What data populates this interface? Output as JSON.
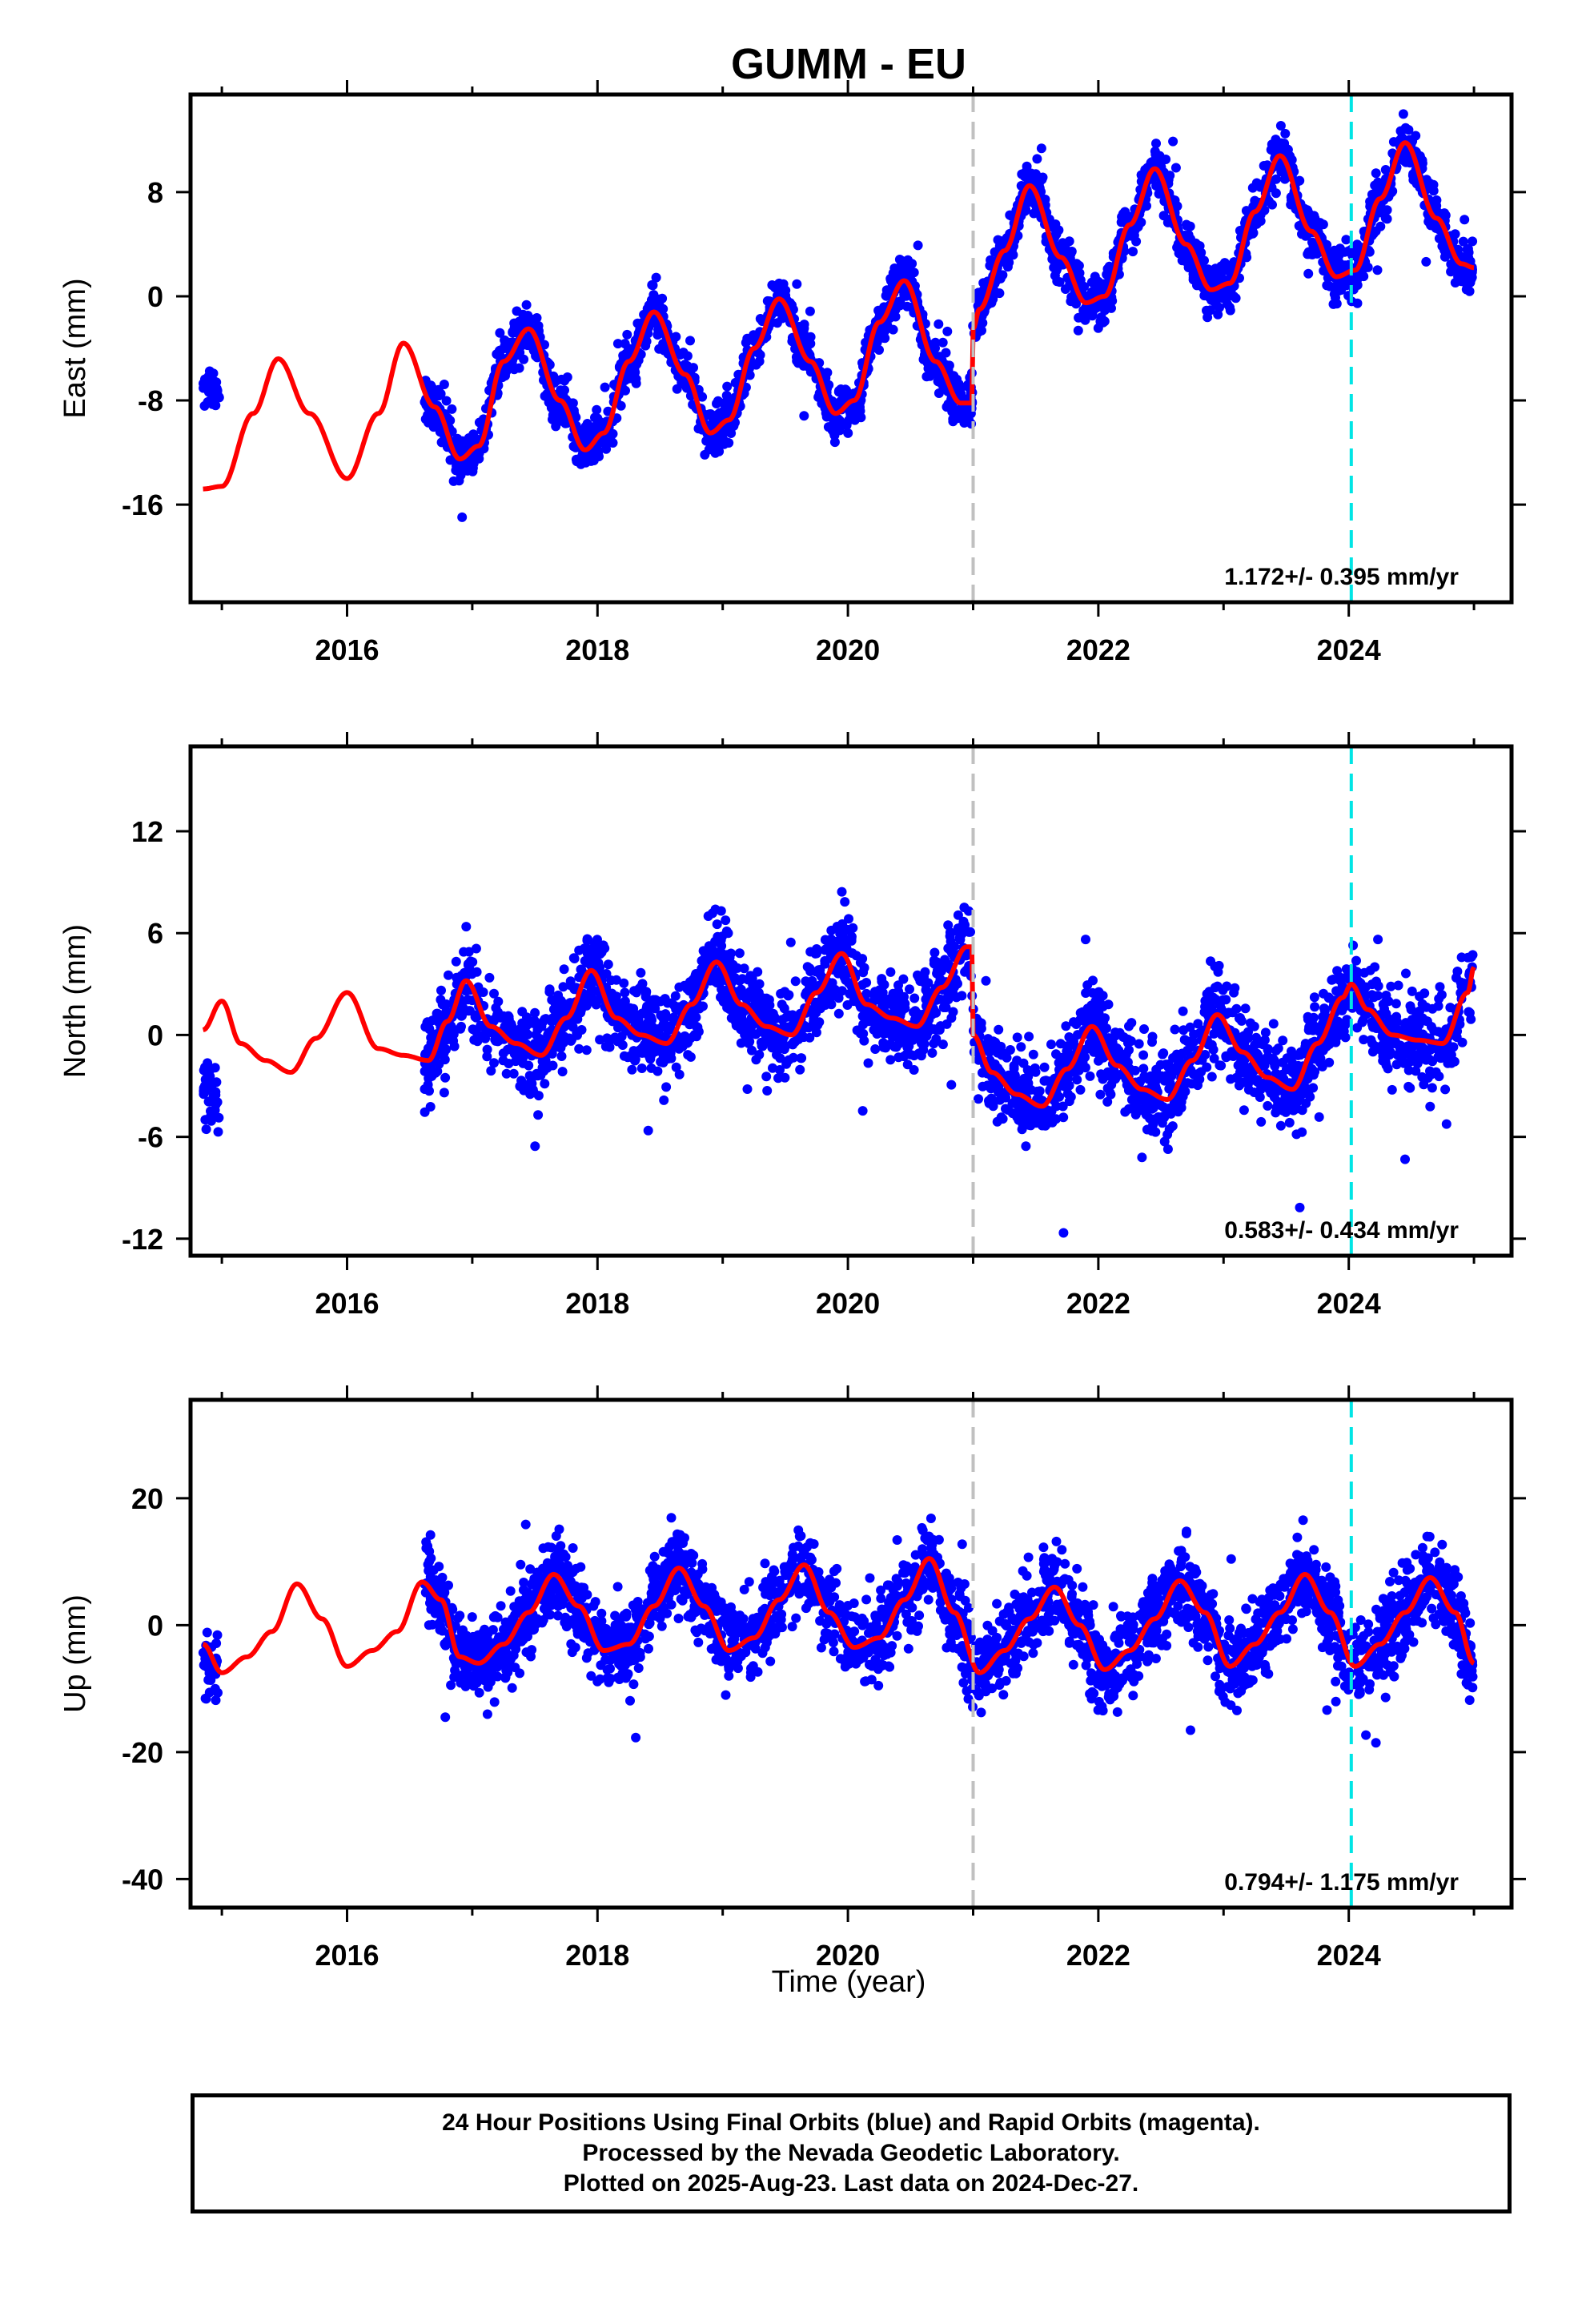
{
  "chart_data": {
    "title": "GUMM - EU",
    "type": "scatter",
    "xlabel": "Time (year)",
    "xlim": [
      2014.75,
      2025.3
    ],
    "x_ticks": [
      "2016",
      "2018",
      "2020",
      "2022",
      "2024"
    ],
    "marker_lines": [
      {
        "x": 2021.0,
        "color": "#c0c0c0",
        "style": "dashed"
      },
      {
        "x": 2024.02,
        "color": "#00e5e5",
        "style": "dashed"
      }
    ],
    "data_color": "#0000ff",
    "model_color": "#ff0000",
    "panels": [
      {
        "ylabel": "East (mm)",
        "ylim": [
          -23.5,
          15.5
        ],
        "y_ticks": [
          "-16",
          "-8",
          "0",
          "8"
        ],
        "rate_label": "1.172+/- 0.395 mm/yr",
        "model": {
          "x": [
            2014.85,
            2015.0,
            2015.25,
            2015.45,
            2015.7,
            2016.0,
            2016.25,
            2016.45,
            2016.7,
            2016.9,
            2017.05,
            2017.25,
            2017.45,
            2017.7,
            2017.9,
            2018.05,
            2018.25,
            2018.45,
            2018.7,
            2018.9,
            2019.05,
            2019.25,
            2019.45,
            2019.7,
            2019.9,
            2020.05,
            2020.25,
            2020.45,
            2020.7,
            2020.9,
            2020.99,
            2021.0,
            2021.05,
            2021.25,
            2021.45,
            2021.7,
            2021.9,
            2022.05,
            2022.25,
            2022.45,
            2022.7,
            2022.9,
            2023.05,
            2023.25,
            2023.45,
            2023.7,
            2023.9,
            2024.05,
            2024.25,
            2024.45,
            2024.7,
            2024.9,
            2025.0
          ],
          "y": [
            -14.8,
            -14.6,
            -9.0,
            -4.8,
            -9.0,
            -14.0,
            -9.0,
            -3.6,
            -8.5,
            -12.5,
            -11.5,
            -5.0,
            -2.5,
            -8.0,
            -11.8,
            -10.5,
            -5.0,
            -1.2,
            -6.0,
            -10.5,
            -9.5,
            -4.0,
            -0.2,
            -5.0,
            -9.0,
            -8.0,
            -2.0,
            1.2,
            -5.0,
            -8.2,
            -8.2,
            -2.5,
            -1.0,
            3.5,
            8.5,
            3.0,
            -0.5,
            0.0,
            5.5,
            9.8,
            4.0,
            0.5,
            1.0,
            6.5,
            10.8,
            5.0,
            1.5,
            2.0,
            7.5,
            11.8,
            6.0,
            2.5,
            2.2
          ]
        },
        "scatter_segments": [
          {
            "x0": 2014.85,
            "x1": 2014.98,
            "center": -7.2,
            "amp": 0.0,
            "phase": 0.0,
            "noise": 1.5
          },
          {
            "x0": 2016.62,
            "x1": 2024.99,
            "center": "model",
            "noise": 1.8
          }
        ]
      },
      {
        "ylabel": "North (mm)",
        "ylim": [
          -13.0,
          17.0
        ],
        "y_ticks": [
          "-12",
          "-6",
          "0",
          "6",
          "12"
        ],
        "rate_label": "0.583+/- 0.434 mm/yr",
        "model": {
          "x": [
            2014.85,
            2015.0,
            2015.15,
            2015.35,
            2015.55,
            2015.75,
            2016.0,
            2016.25,
            2016.45,
            2016.65,
            2016.8,
            2016.95,
            2017.15,
            2017.35,
            2017.55,
            2017.75,
            2017.95,
            2018.15,
            2018.35,
            2018.55,
            2018.75,
            2018.95,
            2019.15,
            2019.35,
            2019.55,
            2019.75,
            2019.95,
            2020.15,
            2020.35,
            2020.55,
            2020.75,
            2020.95,
            2020.99,
            2021.0,
            2021.15,
            2021.35,
            2021.55,
            2021.75,
            2021.95,
            2022.15,
            2022.35,
            2022.55,
            2022.75,
            2022.95,
            2023.15,
            2023.35,
            2023.55,
            2023.75,
            2023.95,
            2024.02,
            2024.15,
            2024.35,
            2024.55,
            2024.75,
            2024.95,
            2025.0
          ],
          "y": [
            0.3,
            2.0,
            -0.5,
            -1.5,
            -2.2,
            -0.2,
            2.5,
            -0.8,
            -1.2,
            -1.5,
            0.8,
            3.2,
            0.5,
            -0.5,
            -1.2,
            1.0,
            3.8,
            1.0,
            0.0,
            -0.5,
            1.8,
            4.3,
            1.8,
            0.5,
            0.0,
            2.5,
            4.8,
            1.8,
            1.0,
            0.5,
            2.8,
            5.2,
            5.2,
            0.0,
            -2.2,
            -3.5,
            -4.2,
            -2.0,
            0.5,
            -1.8,
            -3.2,
            -3.8,
            -1.5,
            1.2,
            -1.0,
            -2.5,
            -3.2,
            -0.5,
            2.2,
            3.0,
            1.5,
            0.0,
            -0.3,
            -0.5,
            2.5,
            4.0
          ]
        },
        "scatter_segments": [
          {
            "x0": 2014.85,
            "x1": 2014.98,
            "center": -3.5,
            "amp": 0.0,
            "phase": 0.0,
            "noise": 1.8
          },
          {
            "x0": 2016.62,
            "x1": 2024.99,
            "center": "model",
            "noise": 2.3
          }
        ]
      },
      {
        "ylabel": "Up (mm)",
        "ylim": [
          -44.5,
          35.5
        ],
        "y_ticks": [
          "-40",
          "-20",
          "0",
          "20"
        ],
        "rate_label": "0.794+/- 1.175 mm/yr",
        "model": {
          "x": [
            2014.85,
            2015.0,
            2015.2,
            2015.4,
            2015.6,
            2015.8,
            2016.0,
            2016.2,
            2016.4,
            2016.6,
            2016.75,
            2016.9,
            2017.05,
            2017.25,
            2017.45,
            2017.65,
            2017.85,
            2018.05,
            2018.25,
            2018.45,
            2018.65,
            2018.85,
            2019.05,
            2019.25,
            2019.45,
            2019.65,
            2019.85,
            2020.05,
            2020.25,
            2020.45,
            2020.65,
            2020.85,
            2021.05,
            2021.25,
            2021.45,
            2021.65,
            2021.85,
            2022.05,
            2022.25,
            2022.45,
            2022.65,
            2022.85,
            2023.05,
            2023.25,
            2023.45,
            2023.65,
            2023.85,
            2024.05,
            2024.25,
            2024.45,
            2024.65,
            2024.85,
            2025.0
          ],
          "y": [
            -3.0,
            -7.5,
            -5.0,
            -1.0,
            6.5,
            1.0,
            -6.5,
            -4.0,
            -1.0,
            6.8,
            4.0,
            -5.0,
            -6.0,
            -3.0,
            2.0,
            8.0,
            3.0,
            -4.0,
            -3.0,
            3.0,
            9.0,
            3.0,
            -4.0,
            -2.0,
            4.0,
            9.5,
            2.0,
            -3.5,
            -2.0,
            4.0,
            10.5,
            2.0,
            -7.5,
            -4.0,
            1.0,
            6.0,
            0.0,
            -7.0,
            -4.0,
            1.0,
            7.0,
            2.0,
            -6.5,
            -3.0,
            2.0,
            8.0,
            2.0,
            -6.5,
            -3.0,
            2.0,
            7.5,
            2.0,
            -6.0
          ]
        },
        "scatter_segments": [
          {
            "x0": 2014.85,
            "x1": 2014.98,
            "center": -6.0,
            "amp": 0.0,
            "phase": 0.0,
            "noise": 4.5
          },
          {
            "x0": 2016.62,
            "x1": 2024.99,
            "center": "model",
            "noise": 6.0
          }
        ]
      }
    ]
  },
  "caption": {
    "line1": "24 Hour Positions Using Final Orbits (blue) and Rapid Orbits (magenta).",
    "line2": "Processed by the Nevada Geodetic Laboratory.",
    "line3": "Plotted on 2025-Aug-23. Last data on 2024-Dec-27."
  }
}
